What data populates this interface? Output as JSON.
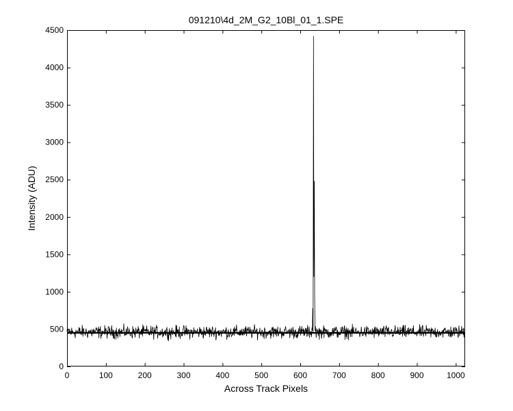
{
  "chart_data": {
    "type": "line",
    "title": "091210\\4d_2M_G2_10Bl_01_1.SPE",
    "xlabel": "Across Track Pixels",
    "ylabel": "Intensity (ADU)",
    "xlim": [
      0,
      1024
    ],
    "ylim": [
      0,
      4500
    ],
    "xticks": [
      0,
      100,
      200,
      300,
      400,
      500,
      600,
      700,
      800,
      900,
      1000
    ],
    "yticks": [
      0,
      500,
      1000,
      1500,
      2000,
      2500,
      3000,
      3500,
      4000,
      4500
    ],
    "grid": false,
    "legend": "none",
    "series": [
      {
        "color": "#000000",
        "baseline": 460,
        "noise_amplitude": 80,
        "peaks": [
          {
            "x": 630,
            "y": 520
          },
          {
            "x": 632,
            "y": 780
          },
          {
            "x": 634,
            "y": 4420
          },
          {
            "x": 635,
            "y": 1200
          },
          {
            "x": 636,
            "y": 2480
          },
          {
            "x": 637,
            "y": 900
          },
          {
            "x": 639,
            "y": 540
          }
        ]
      },
      {
        "color": "#000000",
        "constant": 450
      }
    ]
  }
}
